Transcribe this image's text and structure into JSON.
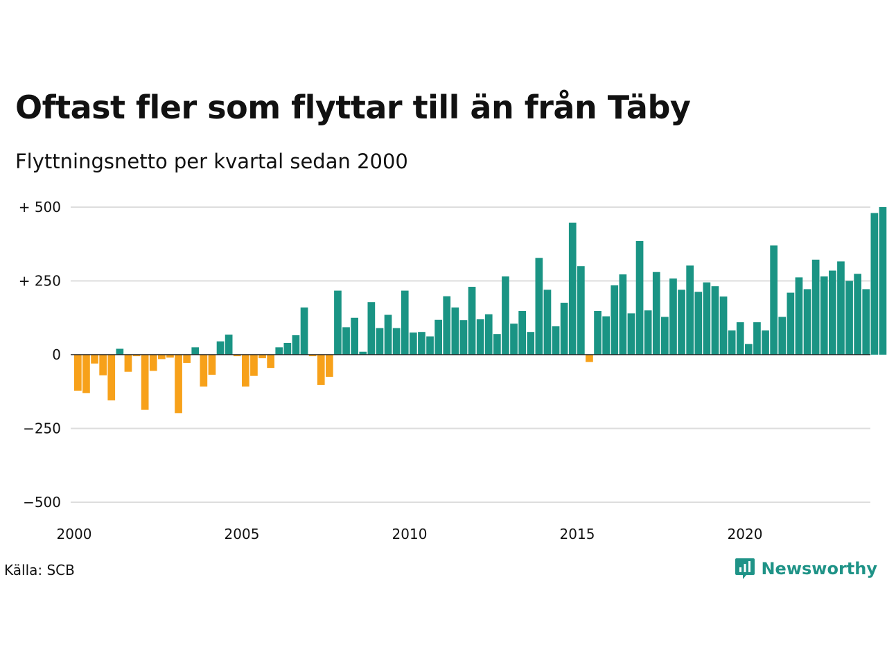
{
  "title": "Oftast fler som flyttar till än från Täby",
  "subtitle": "Flyttningsnetto per kvartal sedan 2000",
  "source": "Källa: SCB",
  "brand": {
    "name": "Newsworthy",
    "icon": "newsworthy-logo-icon"
  },
  "colors": {
    "positive": "#1a9484",
    "negative": "#f7a11a",
    "grid": "#dddddd",
    "zero_line": "#222222",
    "brand": "#1f9387"
  },
  "chart_data": {
    "type": "bar",
    "title": "Oftast fler som flyttar till än från Täby",
    "subtitle": "Flyttningsnetto per kvartal sedan 2000",
    "xlabel": "",
    "ylabel": "",
    "ylim": [
      -500,
      500
    ],
    "xlim": [
      2000,
      2024
    ],
    "y_ticks": [
      500,
      250,
      0,
      -250,
      -500
    ],
    "y_tick_labels": [
      "+ 500",
      "+ 250",
      "0",
      "−250",
      "−500"
    ],
    "x_ticks": [
      2000,
      2005,
      2010,
      2015,
      2020
    ],
    "x_tick_labels": [
      "2000",
      "2005",
      "2010",
      "2015",
      "2020"
    ],
    "grid": true,
    "legend": "none",
    "series": [
      {
        "start_year": 2000,
        "periods_per_year": 4,
        "values": [
          -122,
          -130,
          -30,
          -70,
          -155,
          20,
          -58,
          -5,
          -187,
          -55,
          -15,
          -10,
          -198,
          -28,
          25,
          -108,
          -68,
          45,
          68,
          -5,
          -108,
          -72,
          -12,
          -45,
          25,
          40,
          66,
          160,
          -5,
          -103,
          -75,
          217,
          93,
          125,
          10,
          178,
          90,
          135,
          90,
          217,
          75,
          77,
          62,
          118,
          198,
          160,
          117,
          230,
          120,
          137,
          70,
          265,
          105,
          148,
          77,
          328,
          220,
          96,
          176,
          447,
          300,
          -25,
          148,
          130,
          235,
          272,
          140,
          385,
          150,
          280,
          128,
          258,
          220,
          302,
          213,
          245,
          232,
          197,
          82,
          110,
          36,
          110,
          82,
          370,
          128,
          210,
          262,
          222,
          322,
          265,
          285,
          316,
          250,
          274,
          222,
          480,
          500
        ]
      }
    ]
  }
}
